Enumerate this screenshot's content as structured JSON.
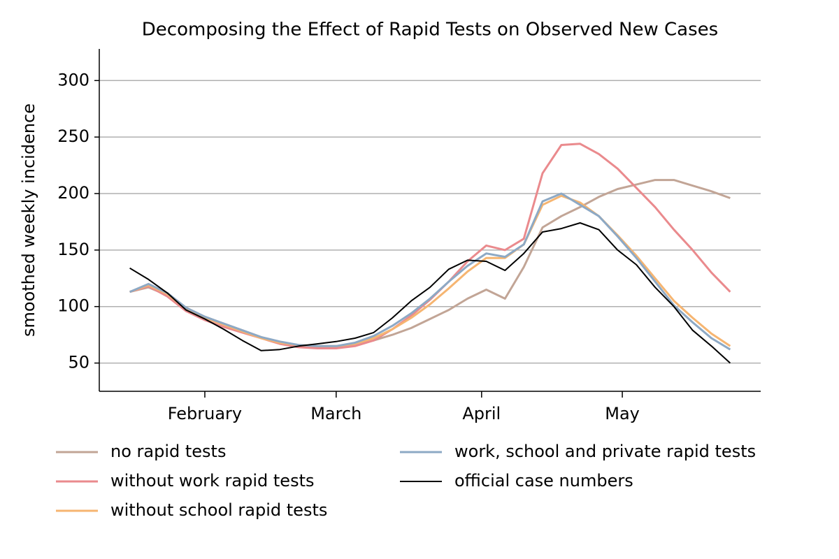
{
  "chart_data": {
    "type": "line",
    "title": "Decomposing the Effect of Rapid Tests on Observed New Cases",
    "ylabel": "smoothed weekly incidence",
    "x": [
      15,
      19,
      23,
      27,
      31,
      35,
      39,
      43,
      47,
      51,
      55,
      59,
      63,
      67,
      71,
      75,
      79,
      83,
      87,
      91,
      95,
      99,
      103,
      107,
      111,
      115,
      119,
      123,
      127,
      131,
      135,
      139,
      143
    ],
    "xlim": [
      8.5,
      149.5
    ],
    "xticks": [
      {
        "value": 31,
        "label": "February"
      },
      {
        "value": 59,
        "label": "March"
      },
      {
        "value": 90,
        "label": "April"
      },
      {
        "value": 120,
        "label": "May"
      }
    ],
    "ylim": [
      25,
      328
    ],
    "yticks": [
      50,
      100,
      150,
      200,
      250,
      300
    ],
    "grid": "y",
    "legend": "below",
    "series": [
      {
        "name": "no rapid tests",
        "color": "#c2a596",
        "width": 3,
        "values": [
          113,
          117,
          110,
          99,
          91,
          85,
          79,
          73,
          68,
          65,
          64,
          64,
          66,
          70,
          75,
          81,
          89,
          97,
          107,
          115,
          107,
          135,
          170,
          180,
          188,
          197,
          204,
          208,
          212,
          212,
          207,
          202,
          196
        ]
      },
      {
        "name": "without work rapid tests",
        "color": "#ea8a8d",
        "width": 3,
        "values": [
          113,
          118,
          109,
          96,
          88,
          82,
          77,
          72,
          67,
          64,
          63,
          63,
          65,
          70,
          80,
          92,
          106,
          122,
          140,
          154,
          150,
          160,
          218,
          243,
          244,
          235,
          222,
          205,
          188,
          168,
          150,
          130,
          113
        ]
      },
      {
        "name": "without school rapid tests",
        "color": "#f6b571",
        "width": 3,
        "values": [
          113,
          119,
          111,
          98,
          90,
          84,
          78,
          72,
          68,
          66,
          65,
          65,
          67,
          72,
          80,
          90,
          102,
          116,
          131,
          143,
          143,
          155,
          190,
          198,
          192,
          180,
          163,
          145,
          125,
          105,
          90,
          76,
          65
        ]
      },
      {
        "name": "work, school and private rapid tests",
        "color": "#8da9c5",
        "width": 3,
        "values": [
          113,
          120,
          112,
          99,
          91,
          85,
          79,
          73,
          69,
          66,
          65,
          65,
          68,
          74,
          83,
          94,
          107,
          122,
          136,
          147,
          144,
          155,
          193,
          200,
          190,
          180,
          162,
          143,
          122,
          101,
          86,
          72,
          62
        ]
      },
      {
        "name": "official case numbers",
        "color": "#000000",
        "width": 2,
        "values": [
          134,
          124,
          112,
          97,
          89,
          80,
          70,
          61,
          62,
          65,
          67,
          69,
          72,
          77,
          90,
          105,
          117,
          133,
          141,
          140,
          132,
          147,
          166,
          169,
          174,
          168,
          150,
          137,
          117,
          100,
          79,
          65,
          50
        ]
      }
    ]
  }
}
